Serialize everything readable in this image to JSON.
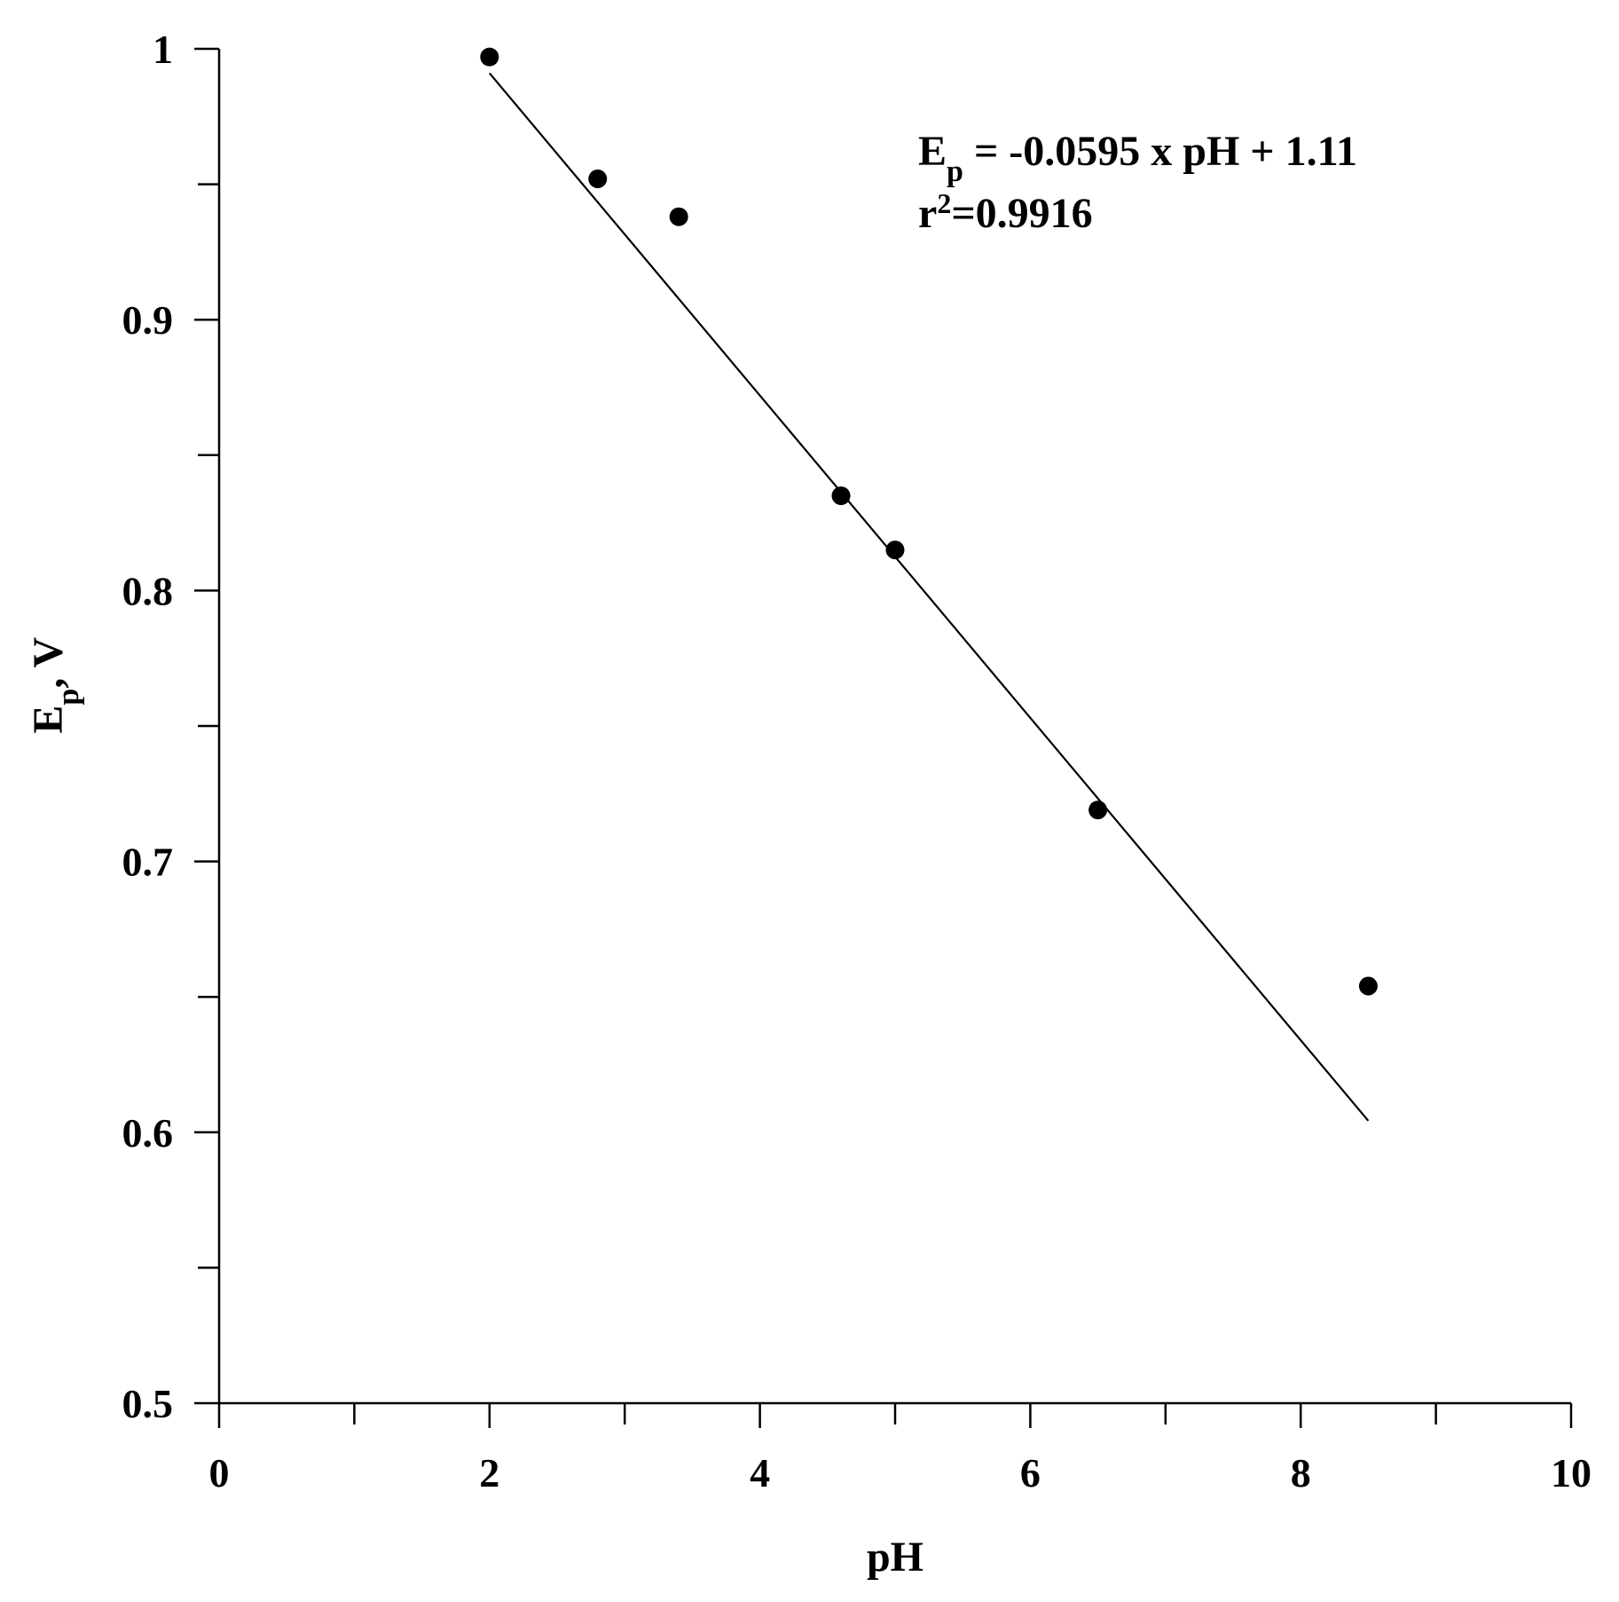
{
  "chart_data": {
    "type": "scatter",
    "title": "",
    "xlabel": "pH",
    "ylabel": {
      "main": "E",
      "sub": "p",
      "rest": ", V"
    },
    "xlim": [
      0,
      10
    ],
    "ylim": [
      0.5,
      1.0
    ],
    "x_ticks": [
      {
        "value": 0,
        "label": "0"
      },
      {
        "value": 2,
        "label": "2"
      },
      {
        "value": 4,
        "label": "4"
      },
      {
        "value": 6,
        "label": "6"
      },
      {
        "value": 8,
        "label": "8"
      },
      {
        "value": 10,
        "label": "10"
      }
    ],
    "x_minor_ticks": [
      1,
      3,
      5,
      7,
      9
    ],
    "y_ticks": [
      {
        "value": 0.5,
        "label": "0.5"
      },
      {
        "value": 0.6,
        "label": "0.6"
      },
      {
        "value": 0.7,
        "label": "0.7"
      },
      {
        "value": 0.8,
        "label": "0.8"
      },
      {
        "value": 0.9,
        "label": "0.9"
      },
      {
        "value": 1.0,
        "label": "1"
      }
    ],
    "y_minor_ticks": [
      0.55,
      0.65,
      0.75,
      0.85,
      0.95
    ],
    "grid": false,
    "series": [
      {
        "points": [
          {
            "x": 2.0,
            "y": 0.997
          },
          {
            "x": 2.8,
            "y": 0.952
          },
          {
            "x": 3.4,
            "y": 0.938
          },
          {
            "x": 4.6,
            "y": 0.835
          },
          {
            "x": 5.0,
            "y": 0.815
          },
          {
            "x": 6.5,
            "y": 0.719
          },
          {
            "x": 8.5,
            "y": 0.654
          }
        ]
      }
    ],
    "fit_line": {
      "x_start": 2.0,
      "x_end": 8.5,
      "slope": -0.0595,
      "intercept": 1.11
    },
    "annotation": {
      "equation": {
        "E": "E",
        "sub": "p",
        "rest": " = -0.0595 x pH + 1.11"
      },
      "r2": {
        "r": "r",
        "sup": "2",
        "rest": "=0.9916"
      }
    }
  }
}
